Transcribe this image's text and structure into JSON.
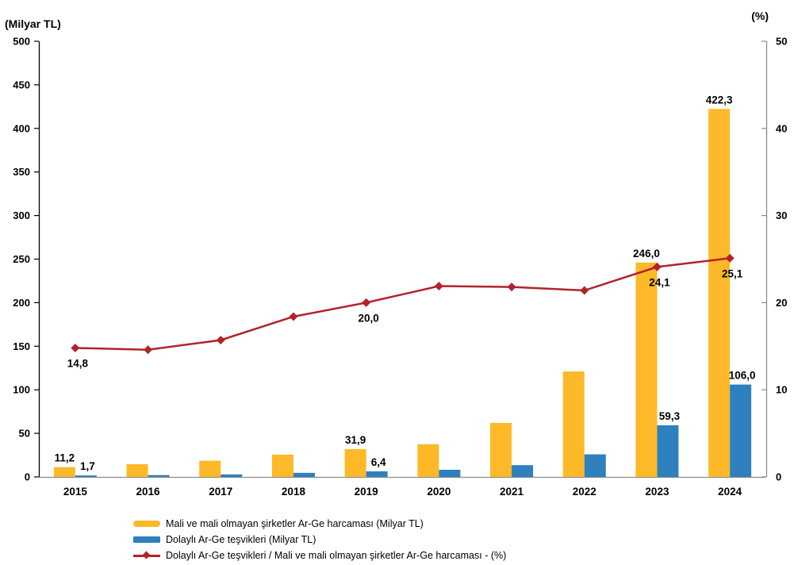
{
  "chart_data": {
    "type": "bar",
    "title": "",
    "categories": [
      "2015",
      "2016",
      "2017",
      "2018",
      "2019",
      "2020",
      "2021",
      "2022",
      "2023",
      "2024"
    ],
    "left_axis": {
      "label": "(Milyar TL)",
      "min": 0,
      "max": 500,
      "step": 50
    },
    "right_axis": {
      "label": "(%)",
      "min": 0,
      "max": 50,
      "step": 10
    },
    "grid": false,
    "legend_position": "bottom",
    "axis_colors": {
      "left_axis_line": "#000000",
      "right_axis_line": "#8C8C8C",
      "bottom_axis_line": "#8C8C8C"
    },
    "series": [
      {
        "name": "Mali ve mali olmayan şirketler Ar-Ge harcaması (Milyar TL)",
        "type": "bar",
        "axis": "left",
        "color": "#FDB927",
        "values": [
          11.2,
          14.6,
          18.6,
          25.6,
          31.9,
          37.5,
          62.0,
          121.0,
          246.0,
          422.3
        ],
        "point_labels": [
          "11,2",
          null,
          null,
          null,
          "31,9",
          null,
          null,
          null,
          "246,0",
          "422,3"
        ]
      },
      {
        "name": "Dolaylı Ar-Ge teşvikleri (Milyar TL)",
        "type": "bar",
        "axis": "left",
        "color": "#2E80BE",
        "values": [
          1.7,
          2.1,
          2.9,
          4.7,
          6.4,
          8.2,
          13.5,
          25.9,
          59.3,
          106.0
        ],
        "point_labels": [
          "1,7",
          null,
          null,
          null,
          "6,4",
          null,
          null,
          null,
          "59,3",
          "106,0"
        ]
      },
      {
        "name": "Dolaylı Ar-Ge teşvikleri / Mali ve mali olmayan şirketler Ar-Ge harcaması - (%)",
        "type": "line",
        "axis": "right",
        "color": "#B22329",
        "marker": "diamond",
        "values": [
          14.8,
          14.6,
          15.7,
          18.4,
          20.0,
          21.9,
          21.8,
          21.4,
          24.1,
          25.1
        ],
        "point_labels": [
          "14,8",
          null,
          null,
          null,
          "20,0",
          null,
          null,
          null,
          "24,1",
          "25,1"
        ]
      }
    ]
  }
}
